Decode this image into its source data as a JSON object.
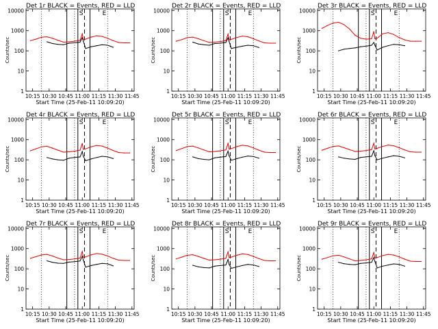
{
  "figure": {
    "x_tick_labels": [
      "10:15",
      "10:30",
      "10:45",
      "11:00",
      "11:15",
      "11:30",
      "11:45"
    ],
    "y_tick_labels": [
      "1",
      "10",
      "100",
      "1000",
      "10000"
    ],
    "xlabel": "Start Time (25-Feb-11 10:09:20)",
    "ylabel": "Counts/sec",
    "markers": [
      "S",
      "E"
    ]
  },
  "chart_data": [
    {
      "type": "line",
      "title": "Det 1r BLACK = Events, RED = LLD",
      "xlabel": "Start Time (25-Feb-11 10:09:20)",
      "ylabel": "Counts/sec",
      "yscale": "log",
      "xlim": [
        "10:09",
        "11:47"
      ],
      "ylim": [
        1,
        12000
      ],
      "x": [
        "10:13",
        "10:18",
        "10:23",
        "10:28",
        "10:33",
        "10:38",
        "10:43",
        "10:48",
        "10:53",
        "10:58",
        "11:00",
        "11:01",
        "11:03",
        "11:08",
        "11:13",
        "11:18",
        "11:23",
        "11:28",
        "11:33",
        "11:38",
        "11:43"
      ],
      "series": [
        {
          "name": "Events",
          "color": "#000000",
          "values": [
            null,
            null,
            null,
            280,
            230,
            210,
            200,
            240,
            250,
            270,
            450,
            300,
            130,
            160,
            180,
            200,
            190,
            150,
            null,
            null,
            null
          ]
        },
        {
          "name": "LLD",
          "color": "#e00000",
          "values": [
            320,
            380,
            470,
            500,
            420,
            330,
            270,
            280,
            300,
            330,
            700,
            360,
            380,
            480,
            560,
            520,
            420,
            320,
            260,
            250,
            250
          ]
        }
      ],
      "vlines_solid": [
        "10:46",
        "10:56",
        "11:07"
      ],
      "vlines_dashed": [
        "11:02"
      ],
      "vlines_dotted": [
        "10:23",
        "10:53",
        "11:23"
      ],
      "marker_positions": {
        "S": "10:59",
        "E": "11:20"
      }
    },
    {
      "type": "line",
      "title": "Det 2r BLACK = Events, RED = LLD",
      "xlabel": "Start Time (25-Feb-11 10:09:20)",
      "ylabel": "Counts/sec",
      "yscale": "log",
      "xlim": [
        "10:09",
        "11:47"
      ],
      "ylim": [
        1,
        12000
      ],
      "x": [
        "10:13",
        "10:18",
        "10:23",
        "10:28",
        "10:33",
        "10:38",
        "10:43",
        "10:48",
        "10:53",
        "10:58",
        "11:00",
        "11:01",
        "11:03",
        "11:08",
        "11:13",
        "11:18",
        "11:23",
        "11:28",
        "11:33",
        "11:38",
        "11:43"
      ],
      "series": [
        {
          "name": "Events",
          "color": "#000000",
          "values": [
            null,
            null,
            null,
            270,
            220,
            200,
            190,
            230,
            240,
            260,
            440,
            290,
            130,
            150,
            170,
            190,
            180,
            145,
            null,
            null,
            null
          ]
        },
        {
          "name": "LLD",
          "color": "#e00000",
          "values": [
            300,
            360,
            450,
            480,
            400,
            320,
            260,
            270,
            290,
            320,
            680,
            350,
            370,
            460,
            540,
            500,
            400,
            310,
            250,
            240,
            240
          ]
        }
      ],
      "vlines_solid": [
        "10:46",
        "10:56",
        "11:07"
      ],
      "vlines_dashed": [
        "11:02"
      ],
      "vlines_dotted": [
        "10:23",
        "10:53",
        "11:23"
      ],
      "marker_positions": {
        "S": "10:59",
        "E": "11:20"
      }
    },
    {
      "type": "line",
      "title": "Det 3r BLACK = Events, RED = LLD",
      "xlabel": "Start Time (25-Feb-11 10:09:20)",
      "ylabel": "Counts/sec",
      "yscale": "log",
      "xlim": [
        "10:09",
        "11:47"
      ],
      "ylim": [
        1,
        12000
      ],
      "x": [
        "10:13",
        "10:18",
        "10:23",
        "10:28",
        "10:33",
        "10:38",
        "10:43",
        "10:48",
        "10:53",
        "10:58",
        "11:00",
        "11:01",
        "11:03",
        "11:08",
        "11:13",
        "11:18",
        "11:23",
        "11:28",
        "11:33",
        "11:38",
        "11:43"
      ],
      "series": [
        {
          "name": "Events",
          "color": "#000000",
          "values": [
            null,
            null,
            null,
            100,
            120,
            130,
            140,
            160,
            170,
            190,
            260,
            190,
            110,
            150,
            180,
            210,
            200,
            180,
            null,
            null,
            null
          ]
        },
        {
          "name": "LLD",
          "color": "#e00000",
          "values": [
            1300,
            1800,
            2400,
            2600,
            2000,
            1200,
            600,
            420,
            380,
            400,
            900,
            400,
            420,
            700,
            800,
            650,
            450,
            350,
            300,
            300,
            300
          ]
        }
      ],
      "vlines_solid": [
        "10:46",
        "10:56",
        "11:07"
      ],
      "vlines_dashed": [
        "11:02"
      ],
      "vlines_dotted": [
        "10:23",
        "10:53",
        "11:23"
      ],
      "marker_positions": {
        "S": "10:59",
        "E": "11:20"
      }
    },
    {
      "type": "line",
      "title": "Det 4r BLACK = Events, RED = LLD",
      "xlabel": "Start Time (25-Feb-11 10:09:20)",
      "ylabel": "Counts/sec",
      "yscale": "log",
      "xlim": [
        "10:09",
        "11:47"
      ],
      "ylim": [
        1,
        12000
      ],
      "x": [
        "10:13",
        "10:18",
        "10:23",
        "10:28",
        "10:33",
        "10:38",
        "10:43",
        "10:48",
        "10:53",
        "10:58",
        "11:00",
        "11:01",
        "11:03",
        "11:08",
        "11:13",
        "11:18",
        "11:23",
        "11:28",
        "11:33",
        "11:38",
        "11:43"
      ],
      "series": [
        {
          "name": "Events",
          "color": "#000000",
          "values": [
            null,
            null,
            null,
            130,
            110,
            100,
            95,
            120,
            130,
            140,
            260,
            150,
            90,
            110,
            130,
            150,
            140,
            115,
            null,
            null,
            null
          ]
        },
        {
          "name": "LLD",
          "color": "#e00000",
          "values": [
            280,
            350,
            440,
            470,
            380,
            300,
            240,
            250,
            270,
            300,
            650,
            330,
            350,
            440,
            520,
            480,
            380,
            290,
            230,
            220,
            220
          ]
        }
      ],
      "vlines_solid": [
        "10:46",
        "10:56",
        "11:07"
      ],
      "vlines_dashed": [
        "11:02"
      ],
      "vlines_dotted": [
        "10:23",
        "10:53",
        "11:23"
      ],
      "marker_positions": {
        "S": "10:59",
        "E": "11:20"
      }
    },
    {
      "type": "line",
      "title": "Det 5r BLACK = Events, RED = LLD",
      "xlabel": "Start Time (25-Feb-11 10:09:20)",
      "ylabel": "Counts/sec",
      "yscale": "log",
      "xlim": [
        "10:09",
        "11:47"
      ],
      "ylim": [
        1,
        12000
      ],
      "x": [
        "10:13",
        "10:18",
        "10:23",
        "10:28",
        "10:33",
        "10:38",
        "10:43",
        "10:48",
        "10:53",
        "10:58",
        "11:00",
        "11:01",
        "11:03",
        "11:08",
        "11:13",
        "11:18",
        "11:23",
        "11:28",
        "11:33",
        "11:38",
        "11:43"
      ],
      "series": [
        {
          "name": "Events",
          "color": "#000000",
          "values": [
            null,
            null,
            null,
            140,
            115,
            105,
            100,
            125,
            135,
            145,
            270,
            155,
            95,
            115,
            135,
            155,
            145,
            120,
            null,
            null,
            null
          ]
        },
        {
          "name": "LLD",
          "color": "#e00000",
          "values": [
            290,
            360,
            450,
            480,
            390,
            310,
            250,
            260,
            280,
            310,
            660,
            340,
            360,
            450,
            530,
            490,
            390,
            300,
            240,
            230,
            230
          ]
        }
      ],
      "vlines_solid": [
        "10:46",
        "10:56",
        "11:07"
      ],
      "vlines_dashed": [
        "11:02"
      ],
      "vlines_dotted": [
        "10:23",
        "10:53",
        "11:23"
      ],
      "marker_positions": {
        "S": "10:59",
        "E": "11:20"
      }
    },
    {
      "type": "line",
      "title": "Det 6r BLACK = Events, RED = LLD",
      "xlabel": "Start Time (25-Feb-11 10:09:20)",
      "ylabel": "Counts/sec",
      "yscale": "log",
      "xlim": [
        "10:09",
        "11:47"
      ],
      "ylim": [
        1,
        12000
      ],
      "x": [
        "10:13",
        "10:18",
        "10:23",
        "10:28",
        "10:33",
        "10:38",
        "10:43",
        "10:48",
        "10:53",
        "10:58",
        "11:00",
        "11:01",
        "11:03",
        "11:08",
        "11:13",
        "11:18",
        "11:23",
        "11:28",
        "11:33",
        "11:38",
        "11:43"
      ],
      "series": [
        {
          "name": "Events",
          "color": "#000000",
          "values": [
            null,
            null,
            null,
            140,
            120,
            110,
            105,
            130,
            140,
            150,
            280,
            160,
            100,
            120,
            140,
            160,
            150,
            125,
            null,
            null,
            null
          ]
        },
        {
          "name": "LLD",
          "color": "#e00000",
          "values": [
            300,
            370,
            460,
            490,
            400,
            320,
            260,
            270,
            290,
            320,
            670,
            350,
            370,
            460,
            540,
            500,
            400,
            310,
            250,
            240,
            240
          ]
        }
      ],
      "vlines_solid": [
        "10:46",
        "10:56",
        "11:07"
      ],
      "vlines_dashed": [
        "11:02"
      ],
      "vlines_dotted": [
        "10:23",
        "10:53",
        "11:23"
      ],
      "marker_positions": {
        "S": "10:59",
        "E": "11:20"
      }
    },
    {
      "type": "line",
      "title": "Det 7r BLACK = Events, RED = LLD",
      "xlabel": "Start Time (25-Feb-11 10:09:20)",
      "ylabel": "Counts/sec",
      "yscale": "log",
      "xlim": [
        "10:09",
        "11:47"
      ],
      "ylim": [
        1,
        12000
      ],
      "x": [
        "10:13",
        "10:18",
        "10:23",
        "10:28",
        "10:33",
        "10:38",
        "10:43",
        "10:48",
        "10:53",
        "10:58",
        "11:00",
        "11:01",
        "11:03",
        "11:08",
        "11:13",
        "11:18",
        "11:23",
        "11:28",
        "11:33",
        "11:38",
        "11:43"
      ],
      "series": [
        {
          "name": "Events",
          "color": "#000000",
          "values": [
            null,
            null,
            null,
            250,
            210,
            190,
            185,
            215,
            225,
            245,
            420,
            270,
            120,
            145,
            165,
            185,
            175,
            140,
            null,
            null,
            null
          ]
        },
        {
          "name": "LLD",
          "color": "#e00000",
          "values": [
            330,
            400,
            490,
            520,
            430,
            340,
            280,
            290,
            310,
            340,
            720,
            370,
            390,
            490,
            570,
            530,
            430,
            330,
            270,
            260,
            260
          ]
        }
      ],
      "vlines_solid": [
        "10:46",
        "10:56",
        "11:07"
      ],
      "vlines_dashed": [
        "11:02"
      ],
      "vlines_dotted": [
        "10:23",
        "10:53",
        "11:23"
      ],
      "marker_positions": {
        "S": "10:59",
        "E": "11:20"
      }
    },
    {
      "type": "line",
      "title": "Det 8r BLACK = Events, RED = LLD",
      "xlabel": "Start Time (25-Feb-11 10:09:20)",
      "ylabel": "Counts/sec",
      "yscale": "log",
      "xlim": [
        "10:09",
        "11:47"
      ],
      "ylim": [
        1,
        12000
      ],
      "x": [
        "10:13",
        "10:18",
        "10:23",
        "10:28",
        "10:33",
        "10:38",
        "10:43",
        "10:48",
        "10:53",
        "10:58",
        "11:00",
        "11:01",
        "11:03",
        "11:08",
        "11:13",
        "11:18",
        "11:23",
        "11:28",
        "11:33",
        "11:38",
        "11:43"
      ],
      "series": [
        {
          "name": "Events",
          "color": "#000000",
          "values": [
            null,
            null,
            null,
            150,
            125,
            115,
            110,
            135,
            145,
            155,
            290,
            165,
            105,
            125,
            145,
            165,
            155,
            130,
            null,
            null,
            null
          ]
        },
        {
          "name": "LLD",
          "color": "#e00000",
          "values": [
            310,
            380,
            470,
            500,
            410,
            330,
            270,
            280,
            300,
            330,
            690,
            360,
            380,
            470,
            550,
            510,
            410,
            320,
            260,
            250,
            250
          ]
        }
      ],
      "vlines_solid": [
        "10:46",
        "10:56",
        "11:07"
      ],
      "vlines_dashed": [
        "11:02"
      ],
      "vlines_dotted": [
        "10:23",
        "10:53",
        "11:23"
      ],
      "marker_positions": {
        "S": "10:59",
        "E": "11:20"
      }
    },
    {
      "type": "line",
      "title": "Det 9r BLACK = Events, RED = LLD",
      "xlabel": "Start Time (25-Feb-11 10:09:20)",
      "ylabel": "Counts/sec",
      "yscale": "log",
      "xlim": [
        "10:09",
        "11:47"
      ],
      "ylim": [
        1,
        12000
      ],
      "x": [
        "10:13",
        "10:18",
        "10:23",
        "10:28",
        "10:33",
        "10:38",
        "10:43",
        "10:48",
        "10:53",
        "10:58",
        "11:00",
        "11:01",
        "11:03",
        "11:08",
        "11:13",
        "11:18",
        "11:23",
        "11:28",
        "11:33",
        "11:38",
        "11:43"
      ],
      "series": [
        {
          "name": "Events",
          "color": "#000000",
          "values": [
            null,
            null,
            null,
            210,
            180,
            165,
            160,
            185,
            195,
            210,
            360,
            230,
            110,
            135,
            155,
            175,
            165,
            135,
            null,
            null,
            null
          ]
        },
        {
          "name": "LLD",
          "color": "#e00000",
          "values": [
            300,
            360,
            440,
            470,
            390,
            310,
            250,
            260,
            280,
            310,
            640,
            340,
            360,
            450,
            520,
            480,
            390,
            300,
            240,
            230,
            230
          ]
        }
      ],
      "vlines_solid": [
        "10:46",
        "10:56",
        "11:07"
      ],
      "vlines_dashed": [
        "11:02"
      ],
      "vlines_dotted": [
        "10:23",
        "10:53",
        "11:23"
      ],
      "marker_positions": {
        "S": "10:59",
        "E": "11:20"
      }
    }
  ]
}
